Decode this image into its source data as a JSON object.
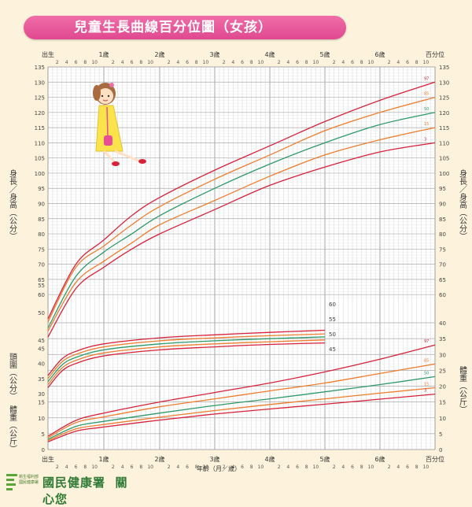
{
  "header": {
    "title": "兒童生長曲線百分位圖（女孩）"
  },
  "footer": {
    "agency": "國民健康署",
    "slogan": "關心您",
    "logo_text_1": "衛生福利部",
    "logo_text_2": "國民健康署"
  },
  "axis": {
    "top_labels": [
      "出生",
      "1歲",
      "2歲",
      "3歲",
      "4歲",
      "5歲",
      "6歲",
      "百分位"
    ],
    "month_ticks": [
      "2",
      "4",
      "6",
      "8",
      "10"
    ],
    "bottom_title": "年齡（月／歲）"
  },
  "height_label": "身長／身高（公分）",
  "head_label": "頭圍（公分）",
  "weight_label": "體重（公斤）",
  "percentile_labels": [
    "97",
    "85",
    "50",
    "15",
    "3"
  ],
  "colors": {
    "p97": "#d8213a",
    "p85": "#ef7d2e",
    "p50": "#2e9a6a",
    "p15": "#ef7d2e",
    "p3": "#d8213a",
    "grid": "#c9c9c9",
    "title_pink": "#e94d93"
  },
  "chart_data": [
    {
      "type": "line",
      "title": "身長／身高",
      "xlabel": "年齡（月／歲）",
      "ylabel": "身長／身高（公分）",
      "ylim": [
        45,
        135
      ],
      "x": [
        0,
        6,
        12,
        18,
        24,
        36,
        48,
        60,
        72,
        84
      ],
      "series": [
        {
          "name": "97",
          "values": [
            52,
            70,
            78,
            86,
            92,
            101,
            109,
            117,
            124,
            130
          ]
        },
        {
          "name": "85",
          "values": [
            51,
            69,
            76,
            83,
            89,
            98,
            106,
            114,
            120,
            125
          ]
        },
        {
          "name": "50",
          "values": [
            49,
            66,
            74,
            80,
            86,
            95,
            103,
            110,
            116,
            120
          ]
        },
        {
          "name": "15",
          "values": [
            48,
            64,
            71,
            77,
            83,
            91,
            99,
            106,
            111,
            115
          ]
        },
        {
          "name": "3",
          "values": [
            46,
            62,
            69,
            75,
            80,
            88,
            96,
            102,
            107,
            110
          ]
        }
      ]
    },
    {
      "type": "line",
      "title": "頭圍",
      "xlabel": "年齡（月／歲）",
      "ylabel": "頭圍（公分）",
      "ylim": [
        30,
        60
      ],
      "x": [
        0,
        3,
        6,
        12,
        24,
        36,
        48,
        60
      ],
      "series": [
        {
          "name": "97",
          "values": [
            36,
            41.5,
            44,
            46.5,
            48.5,
            49.5,
            50.3,
            51
          ]
        },
        {
          "name": "85",
          "values": [
            35,
            40.5,
            43,
            45.5,
            47.5,
            48.5,
            49.2,
            49.8
          ]
        },
        {
          "name": "50",
          "values": [
            34,
            39.5,
            42,
            44.5,
            46.5,
            47.5,
            48.2,
            48.8
          ]
        },
        {
          "name": "15",
          "values": [
            33,
            38.5,
            41,
            43.5,
            45.5,
            46.5,
            47.2,
            47.8
          ]
        },
        {
          "name": "3",
          "values": [
            32,
            37.5,
            40,
            42.5,
            44.5,
            45.5,
            46.3,
            46.8
          ]
        }
      ]
    },
    {
      "type": "line",
      "title": "體重",
      "xlabel": "年齡（月／歲）",
      "ylabel": "體重（公斤）",
      "ylim": [
        0,
        40
      ],
      "x": [
        0,
        6,
        12,
        24,
        36,
        48,
        60,
        72,
        84
      ],
      "series": [
        {
          "name": "97",
          "values": [
            4.2,
            9.2,
            11.5,
            15,
            18,
            21,
            24.5,
            28.5,
            33
          ]
        },
        {
          "name": "85",
          "values": [
            3.7,
            8.5,
            10.3,
            13.5,
            16,
            18.5,
            21,
            24,
            27
          ]
        },
        {
          "name": "50",
          "values": [
            3.2,
            7.3,
            8.9,
            11.5,
            13.9,
            16,
            18.2,
            20.5,
            23
          ]
        },
        {
          "name": "15",
          "values": [
            2.8,
            6.5,
            7.9,
            10.2,
            12.3,
            14.2,
            16,
            17.8,
            19.5
          ]
        },
        {
          "name": "3",
          "values": [
            2.4,
            5.8,
            7.1,
            9.3,
            11.2,
            12.8,
            14.3,
            15.9,
            17.5
          ]
        }
      ]
    }
  ]
}
